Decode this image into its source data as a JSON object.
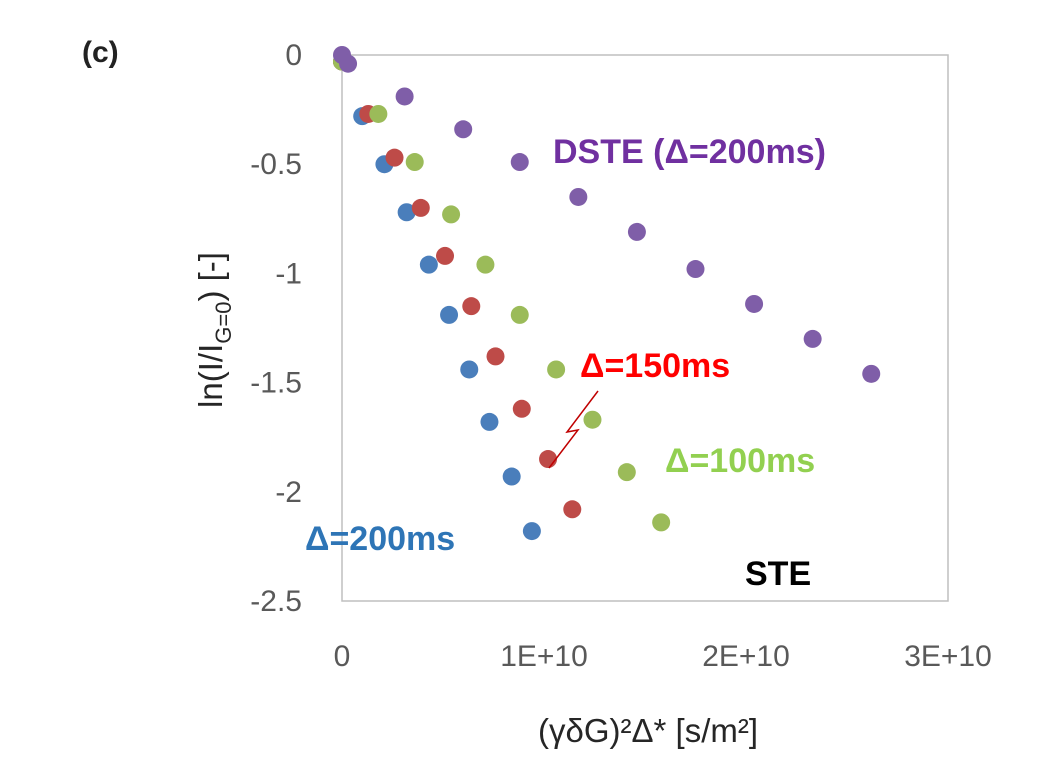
{
  "panel_label": "(c)",
  "chart_data": {
    "type": "scatter",
    "xlabel": "(γδG)²Δ*  [s/m²]",
    "ylabel": "ln(I/I_G=0)  [-]",
    "ylabel_main": "ln(I/I",
    "ylabel_sub": "G=0",
    "ylabel_tail": ")  [-]",
    "xlim": [
      0,
      30000000000
    ],
    "ylim": [
      -2.5,
      0
    ],
    "x_ticks": [
      0,
      10000000000,
      20000000000,
      30000000000
    ],
    "x_tick_labels": [
      "0",
      "1E+10",
      "2E+10",
      "3E+10"
    ],
    "y_ticks": [
      0,
      -0.5,
      -1,
      -1.5,
      -2,
      -2.5
    ],
    "y_tick_labels": [
      "0",
      "-0.5",
      "-1",
      "-1.5",
      "-2",
      "-2.5"
    ],
    "grid": false,
    "series": [
      {
        "name": "STE Δ=200ms",
        "color": "#4a7ebb",
        "x": [
          0,
          1000000000,
          2100000000,
          3200000000,
          4300000000,
          5300000000,
          6300000000,
          7300000000,
          8400000000,
          9400000000
        ],
        "y": [
          -0.03,
          -0.28,
          -0.5,
          -0.72,
          -0.96,
          -1.19,
          -1.44,
          -1.68,
          -1.93,
          -2.18
        ]
      },
      {
        "name": "STE Δ=150ms",
        "color": "#be4b48",
        "x": [
          0,
          1300000000,
          2600000000,
          3900000000,
          5100000000,
          6400000000,
          7600000000,
          8900000000,
          10200000000,
          11400000000
        ],
        "y": [
          -0.03,
          -0.27,
          -0.47,
          -0.7,
          -0.92,
          -1.15,
          -1.38,
          -1.62,
          -1.85,
          -2.08
        ]
      },
      {
        "name": "STE Δ=100ms",
        "color": "#9bbb59",
        "x": [
          0,
          1800000000,
          3600000000,
          5400000000,
          7100000000,
          8800000000,
          10600000000,
          12400000000,
          14100000000,
          15800000000
        ],
        "y": [
          -0.03,
          -0.27,
          -0.49,
          -0.73,
          -0.96,
          -1.19,
          -1.44,
          -1.67,
          -1.91,
          -2.14
        ]
      },
      {
        "name": "DSTE Δ=200ms",
        "color": "#7f5ea8",
        "x": [
          0,
          300000000,
          3100000000,
          6000000000,
          8800000000,
          11700000000,
          14600000000,
          17500000000,
          20400000000,
          23300000000,
          26200000000
        ],
        "y": [
          0,
          -0.04,
          -0.19,
          -0.34,
          -0.49,
          -0.65,
          -0.81,
          -0.98,
          -1.14,
          -1.3,
          -1.46
        ]
      }
    ],
    "annotations": [
      {
        "text": "DSTE (Δ=200ms)",
        "color": "#7030a0"
      },
      {
        "text": "Δ=150ms",
        "color": "#ff0000"
      },
      {
        "text": "Δ=100ms",
        "color": "#92d050"
      },
      {
        "text": "Δ=200ms",
        "color": "#2e75b6"
      },
      {
        "text": "STE",
        "color": "#000000"
      }
    ]
  }
}
